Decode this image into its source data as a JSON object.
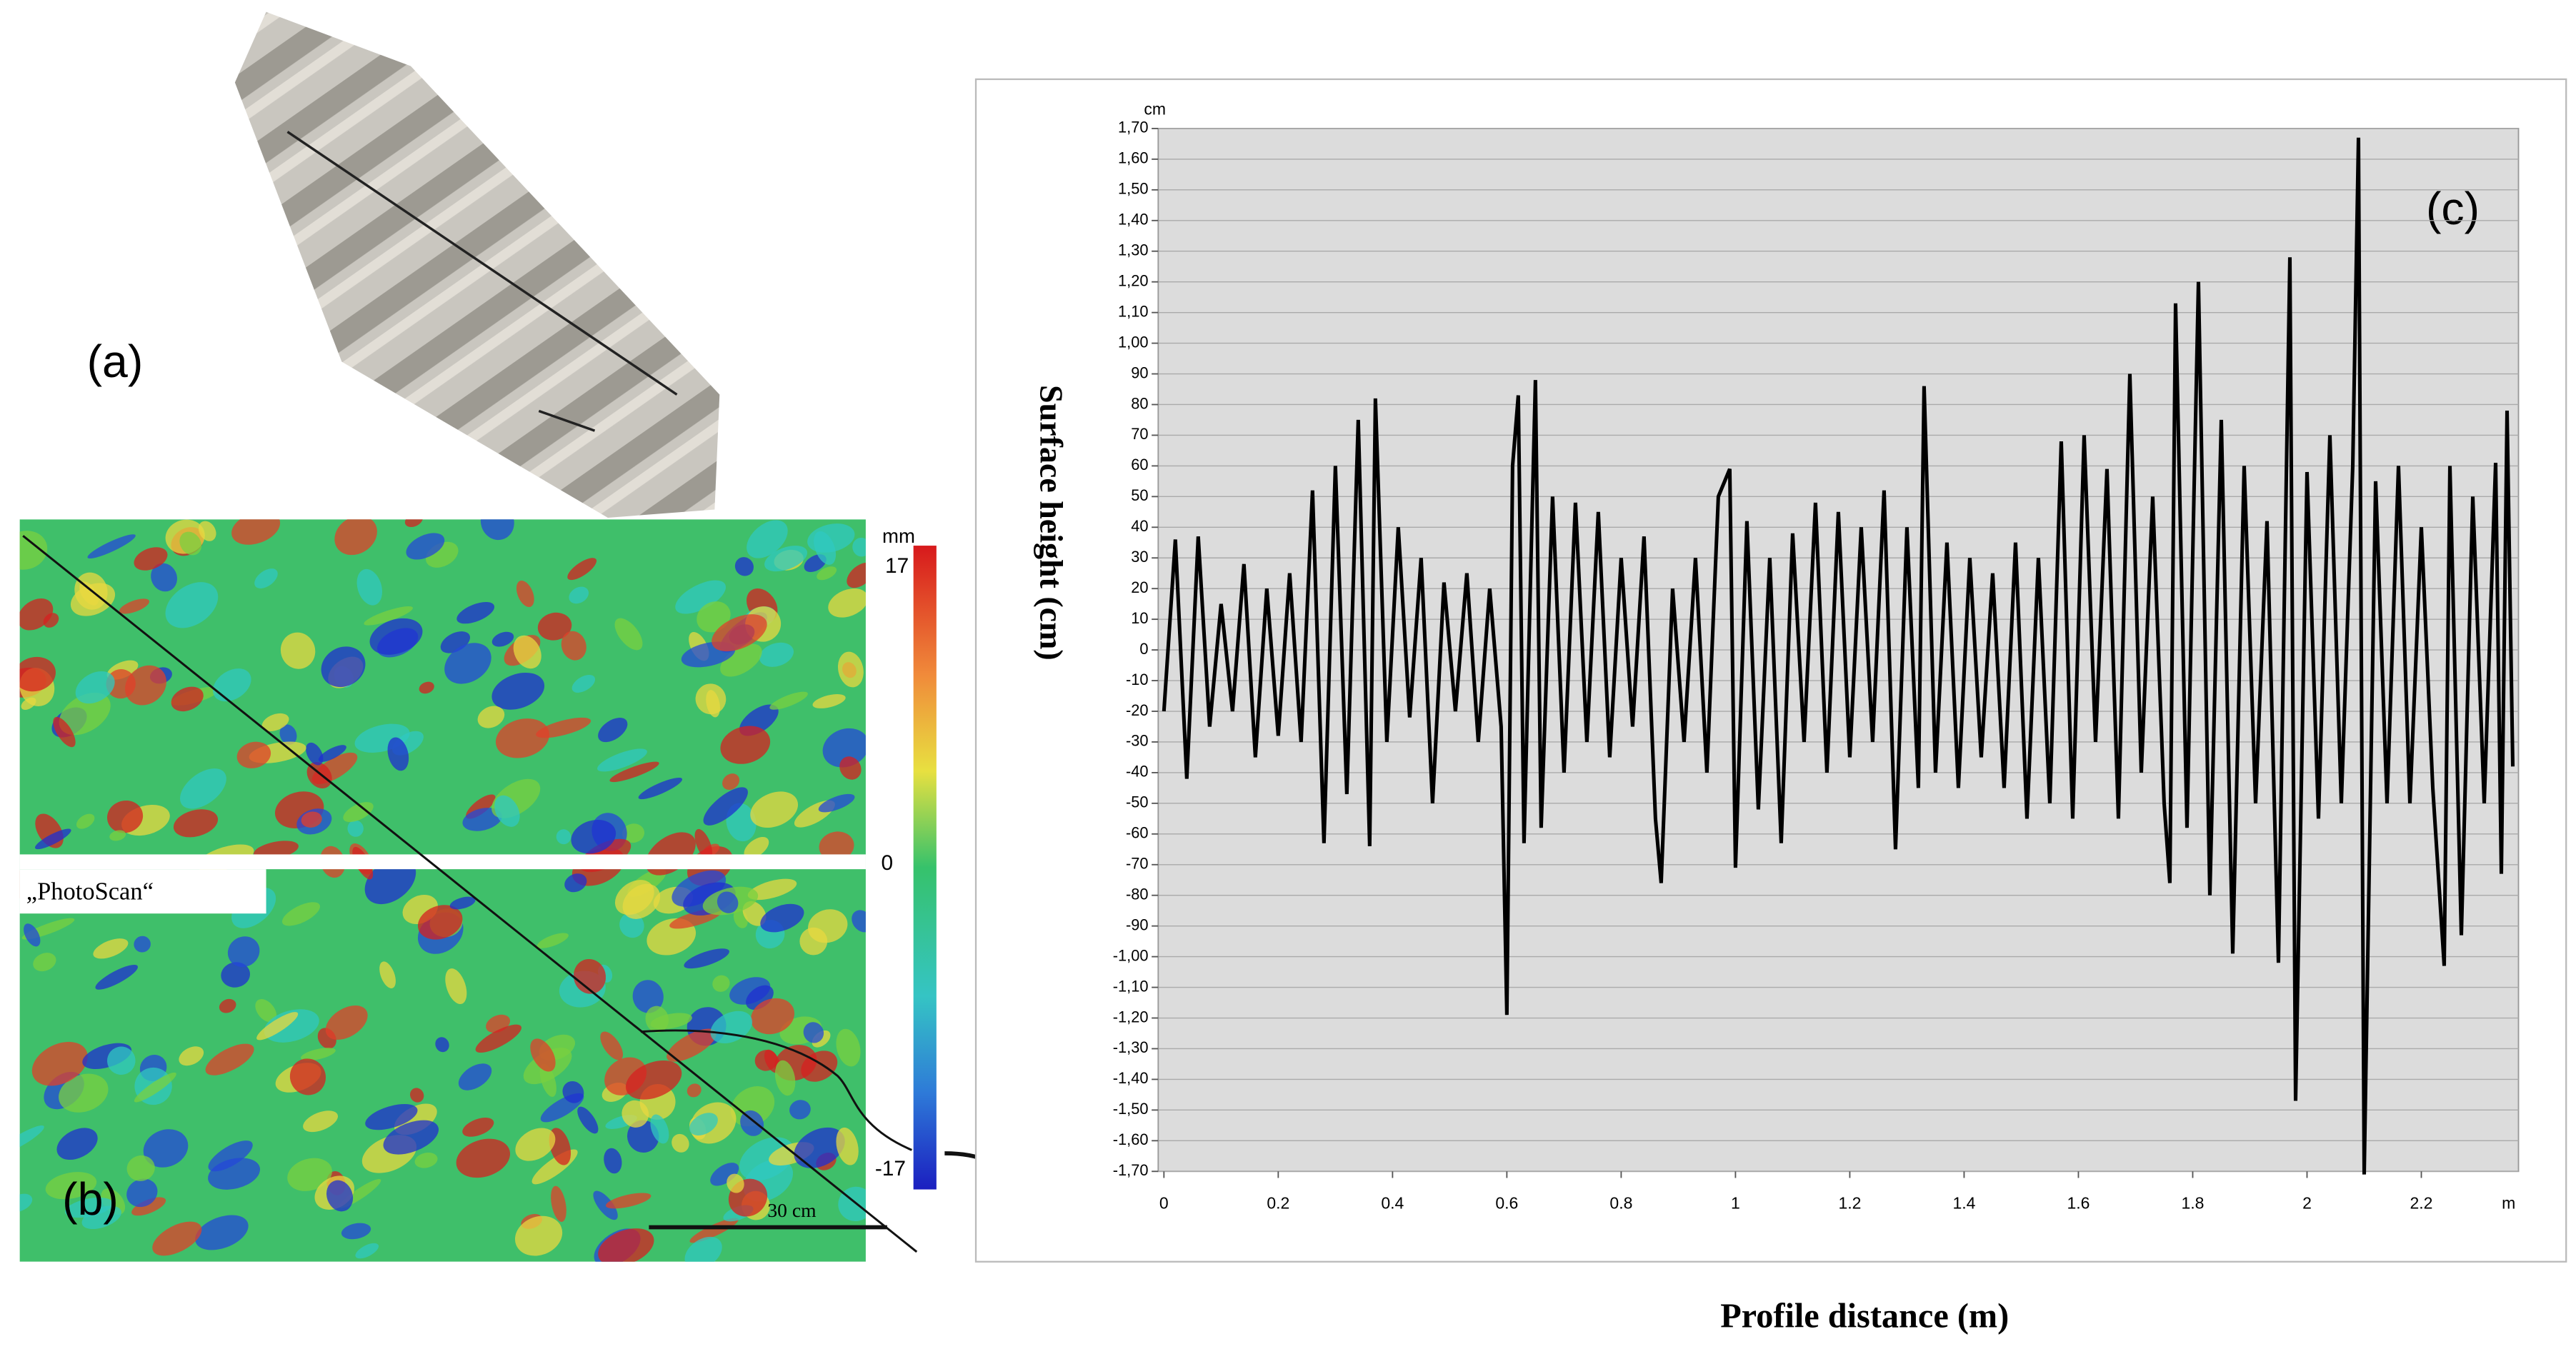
{
  "panel_a": {
    "label": "(a)"
  },
  "panel_b": {
    "label": "(b)",
    "source_label": "„PhotoScan“",
    "scale_label": "30 cm",
    "colorbar": {
      "unit": "mm",
      "max_label": "17",
      "mid_label": "0",
      "min_label": "-17"
    }
  },
  "chart_data": {
    "type": "line",
    "panel_label": "(c)",
    "y_axis_title": "Surface height (cm)",
    "x_axis_title": "Profile distance (m)",
    "y_unit": "cm",
    "x_unit": "m",
    "grid": true,
    "xlim": [
      -0.01,
      2.37
    ],
    "ylim": [
      -1.7,
      1.7
    ],
    "xticks": [
      0,
      0.2,
      0.4,
      0.6,
      0.8,
      1,
      1.2,
      1.4,
      1.6,
      1.8,
      2,
      2.2
    ],
    "yticks": [
      {
        "value": 1.7,
        "label": "1,70"
      },
      {
        "value": 1.6,
        "label": "1,60"
      },
      {
        "value": 1.5,
        "label": "1,50"
      },
      {
        "value": 1.4,
        "label": "1,40"
      },
      {
        "value": 1.3,
        "label": "1,30"
      },
      {
        "value": 1.2,
        "label": "1,20"
      },
      {
        "value": 1.1,
        "label": "1,10"
      },
      {
        "value": 1.0,
        "label": "1,00"
      },
      {
        "value": 0.9,
        "label": "90"
      },
      {
        "value": 0.8,
        "label": "80"
      },
      {
        "value": 0.7,
        "label": "70"
      },
      {
        "value": 0.6,
        "label": "60"
      },
      {
        "value": 0.5,
        "label": "50"
      },
      {
        "value": 0.4,
        "label": "40"
      },
      {
        "value": 0.3,
        "label": "30"
      },
      {
        "value": 0.2,
        "label": "20"
      },
      {
        "value": 0.1,
        "label": "10"
      },
      0,
      {
        "value": -0.1,
        "label": "-10"
      },
      {
        "value": -0.2,
        "label": "-20"
      },
      {
        "value": -0.3,
        "label": "-30"
      },
      {
        "value": -0.4,
        "label": "-40"
      },
      {
        "value": -0.5,
        "label": "-50"
      },
      {
        "value": -0.6,
        "label": "-60"
      },
      {
        "value": -0.7,
        "label": "-70"
      },
      {
        "value": -0.8,
        "label": "-80"
      },
      {
        "value": -0.9,
        "label": "-90"
      },
      {
        "value": -1.0,
        "label": "-1,00"
      },
      {
        "value": -1.1,
        "label": "-1,10"
      },
      {
        "value": -1.2,
        "label": "-1,20"
      },
      {
        "value": -1.3,
        "label": "-1,30"
      },
      {
        "value": -1.4,
        "label": "-1,40"
      },
      {
        "value": -1.5,
        "label": "-1,50"
      },
      {
        "value": -1.6,
        "label": "-1,60"
      },
      {
        "value": -1.7,
        "label": "-1,70"
      }
    ],
    "color": "#000000",
    "x": [
      0.0,
      0.02,
      0.04,
      0.06,
      0.08,
      0.1,
      0.12,
      0.14,
      0.16,
      0.18,
      0.2,
      0.22,
      0.24,
      0.26,
      0.28,
      0.3,
      0.32,
      0.34,
      0.36,
      0.37,
      0.39,
      0.41,
      0.43,
      0.45,
      0.47,
      0.49,
      0.51,
      0.53,
      0.55,
      0.57,
      0.59,
      0.6,
      0.61,
      0.62,
      0.63,
      0.65,
      0.66,
      0.68,
      0.7,
      0.72,
      0.74,
      0.76,
      0.78,
      0.8,
      0.82,
      0.84,
      0.86,
      0.87,
      0.89,
      0.91,
      0.93,
      0.95,
      0.97,
      0.99,
      1.0,
      1.02,
      1.04,
      1.06,
      1.08,
      1.1,
      1.12,
      1.14,
      1.16,
      1.18,
      1.2,
      1.22,
      1.24,
      1.26,
      1.28,
      1.3,
      1.32,
      1.33,
      1.35,
      1.37,
      1.39,
      1.41,
      1.43,
      1.45,
      1.47,
      1.49,
      1.51,
      1.53,
      1.55,
      1.57,
      1.59,
      1.61,
      1.63,
      1.65,
      1.67,
      1.69,
      1.71,
      1.73,
      1.75,
      1.76,
      1.77,
      1.79,
      1.81,
      1.83,
      1.85,
      1.87,
      1.89,
      1.91,
      1.93,
      1.95,
      1.97,
      1.98,
      2.0,
      2.02,
      2.04,
      2.06,
      2.08,
      2.09,
      2.1,
      2.12,
      2.14,
      2.16,
      2.18,
      2.2,
      2.22,
      2.24,
      2.25,
      2.27,
      2.29,
      2.31,
      2.33,
      2.34,
      2.35,
      2.36
    ],
    "values": [
      -0.2,
      0.36,
      -0.42,
      0.37,
      -0.25,
      0.15,
      -0.2,
      0.28,
      -0.35,
      0.2,
      -0.28,
      0.25,
      -0.3,
      0.52,
      -0.63,
      0.6,
      -0.47,
      0.75,
      -0.64,
      0.82,
      -0.3,
      0.4,
      -0.22,
      0.3,
      -0.5,
      0.22,
      -0.2,
      0.25,
      -0.3,
      0.2,
      -0.25,
      -1.19,
      0.6,
      0.83,
      -0.63,
      0.88,
      -0.58,
      0.5,
      -0.4,
      0.48,
      -0.3,
      0.45,
      -0.35,
      0.3,
      -0.25,
      0.37,
      -0.55,
      -0.76,
      0.2,
      -0.3,
      0.3,
      -0.4,
      0.5,
      0.59,
      -0.71,
      0.42,
      -0.52,
      0.3,
      -0.63,
      0.38,
      -0.3,
      0.48,
      -0.4,
      0.45,
      -0.35,
      0.4,
      -0.3,
      0.52,
      -0.65,
      0.4,
      -0.45,
      0.86,
      -0.4,
      0.35,
      -0.45,
      0.3,
      -0.35,
      0.25,
      -0.45,
      0.35,
      -0.55,
      0.3,
      -0.5,
      0.68,
      -0.55,
      0.7,
      -0.3,
      0.59,
      -0.55,
      0.9,
      -0.4,
      0.5,
      -0.5,
      -0.76,
      1.13,
      -0.58,
      1.2,
      -0.8,
      0.75,
      -0.99,
      0.6,
      -0.5,
      0.42,
      -1.02,
      1.28,
      -1.47,
      0.58,
      -0.55,
      0.7,
      -0.5,
      0.6,
      1.67,
      -1.71,
      0.55,
      -0.5,
      0.6,
      -0.5,
      0.4,
      -0.45,
      -1.03,
      0.6,
      -0.93,
      0.5,
      -0.5,
      0.61,
      -0.73,
      0.78,
      -0.38
    ]
  }
}
